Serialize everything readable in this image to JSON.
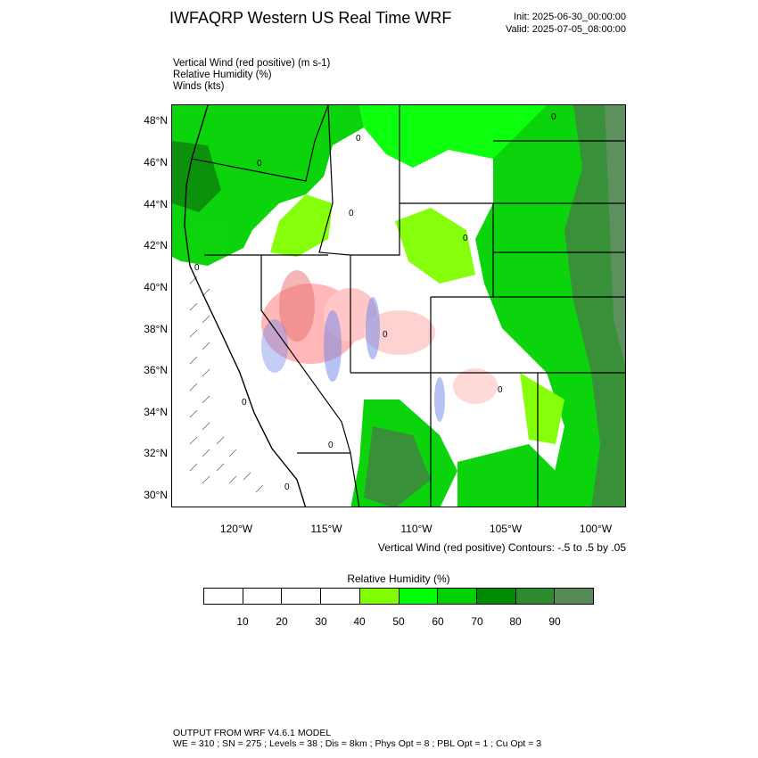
{
  "header": {
    "title": "IWFAQRP Western US Real Time WRF",
    "init": "Init: 2025-06-30_00:00:00",
    "valid": "Valid: 2025-07-05_08:00:00"
  },
  "fields": [
    "Vertical Wind (red positive)   (m s-1)",
    "Relative Humidity   (%)",
    "Winds   (kts)"
  ],
  "map": {
    "lat_labels": [
      "48°N",
      "46°N",
      "44°N",
      "42°N",
      "40°N",
      "38°N",
      "36°N",
      "34°N",
      "32°N",
      "30°N"
    ],
    "lon_labels": [
      "120°W",
      "115°W",
      "110°W",
      "105°W",
      "100°W"
    ],
    "contour_note": "Vertical Wind (red positive) Contours: -.5 to .5 by .05",
    "contour_label": "0",
    "colors": {
      "land_dry": "#ffffff",
      "rh_40": "#80ff00",
      "rh_50": "#00ff00",
      "rh_60": "#00d200",
      "rh_70": "#008c00",
      "rh_80": "#2e8b2e",
      "rh_90": "#568a56",
      "updraft": "#e00000",
      "downdraft": "#0000e0"
    }
  },
  "colorbar": {
    "title": "Relative Humidity  (%)",
    "labels": [
      "10",
      "20",
      "30",
      "40",
      "50",
      "60",
      "70",
      "80",
      "90"
    ],
    "box_colors": [
      "#ffffff",
      "#ffffff",
      "#ffffff",
      "#ffffff",
      "#80ff00",
      "#00ff00",
      "#00d200",
      "#008c00",
      "#2e8b2e",
      "#568a56"
    ]
  },
  "footer": {
    "line1": "OUTPUT FROM WRF V4.6.1 MODEL",
    "line2": "WE = 310 ; SN = 275 ; Levels = 38 ; Dis = 8km ; Phys Opt = 8 ; PBL Opt = 1 ; Cu Opt = 3"
  }
}
